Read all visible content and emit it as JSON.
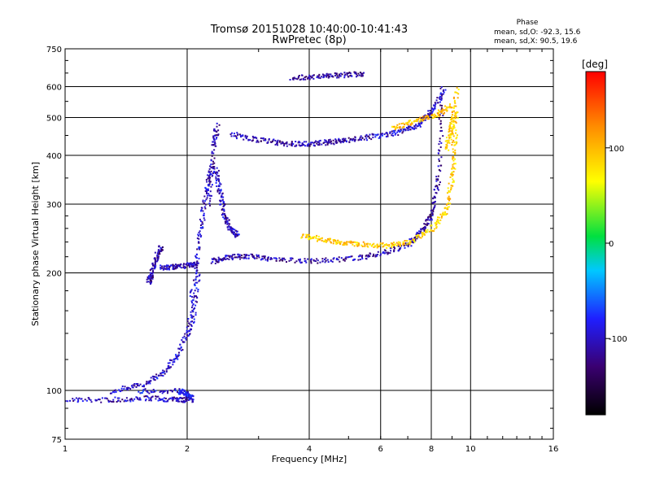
{
  "chart_data": {
    "type": "scatter",
    "title": "Tromsø 20151028 10:40:00-10:41:43",
    "subtitle": "RwPretec (8p)",
    "xlabel": "Frequency [MHz]",
    "ylabel": "Stationary phase Virtual Height [km]",
    "x_scale": "log",
    "y_scale": "log",
    "xlim": [
      1,
      16
    ],
    "ylim": [
      75,
      750
    ],
    "x_ticks": [
      1,
      2,
      4,
      6,
      8,
      10,
      16
    ],
    "y_ticks": [
      75,
      100,
      200,
      300,
      400,
      500,
      600,
      750
    ],
    "grid": true,
    "phase_note": {
      "title": "Phase",
      "line_o": "mean, sd,O: -92.3, 15.6",
      "line_x": "mean, sd,X:  90.5, 19.6"
    },
    "colorbar": {
      "label": "[deg]",
      "range": [
        -180,
        180
      ],
      "ticks": [
        100,
        0,
        -100
      ],
      "tick_labels": [
        "100",
        "0",
        "-100"
      ]
    },
    "traces": [
      {
        "x": [
          1.0,
          1.3,
          1.6,
          1.85,
          2.0
        ],
        "y": [
          95,
          95,
          96,
          95,
          95
        ],
        "phase": -105
      },
      {
        "x": [
          1.3,
          1.55,
          1.75,
          1.9,
          2.05,
          2.12
        ],
        "y": [
          100,
          104,
          112,
          125,
          150,
          200
        ],
        "phase": -100
      },
      {
        "x": [
          1.6,
          1.63,
          1.67,
          1.72
        ],
        "y": [
          190,
          200,
          220,
          235
        ],
        "phase": -110
      },
      {
        "x": [
          1.72,
          1.85,
          2.0,
          2.1
        ],
        "y": [
          207,
          208,
          210,
          212
        ],
        "phase": -108
      },
      {
        "x": [
          2.0,
          2.08,
          2.15,
          2.22,
          2.3
        ],
        "y": [
          140,
          200,
          260,
          330,
          380
        ],
        "phase": -100
      },
      {
        "x": [
          2.25,
          2.32,
          2.36
        ],
        "y": [
          300,
          420,
          480
        ],
        "phase": -110
      },
      {
        "x": [
          2.35,
          2.4,
          2.47,
          2.55,
          2.65
        ],
        "y": [
          370,
          320,
          280,
          260,
          250
        ],
        "phase": -105
      },
      {
        "x": [
          2.3,
          2.5,
          2.8,
          3.2,
          4.0,
          5.0,
          6.0,
          7.0
        ],
        "y": [
          215,
          220,
          222,
          218,
          215,
          218,
          225,
          238
        ],
        "phase": -110
      },
      {
        "x": [
          7.0,
          7.6,
          8.0,
          8.3,
          8.5
        ],
        "y": [
          238,
          258,
          285,
          350,
          560
        ],
        "phase": -115
      },
      {
        "x": [
          2.55,
          3.0,
          3.5,
          4.0,
          4.5,
          5.0,
          5.8
        ],
        "y": [
          455,
          440,
          430,
          430,
          435,
          440,
          450
        ],
        "phase": -112
      },
      {
        "x": [
          5.8,
          6.6,
          7.4,
          8.0,
          8.6
        ],
        "y": [
          450,
          460,
          480,
          520,
          600
        ],
        "phase": -100
      },
      {
        "x": [
          6.4,
          7.2,
          8.2,
          8.9
        ],
        "y": [
          470,
          490,
          510,
          540
        ],
        "phase": 95
      },
      {
        "x": [
          3.6,
          4.2,
          4.8,
          5.5
        ],
        "y": [
          635,
          640,
          645,
          650
        ],
        "phase": -115
      },
      {
        "x": [
          3.8,
          4.3,
          4.8,
          5.4,
          6.2,
          7.0
        ],
        "y": [
          250,
          245,
          240,
          238,
          236,
          240
        ],
        "phase": 92
      },
      {
        "x": [
          7.0,
          8.0,
          8.7,
          9.0,
          9.1,
          9.2
        ],
        "y": [
          240,
          260,
          290,
          360,
          450,
          600
        ],
        "phase": 88
      },
      {
        "x": [
          8.7,
          8.9,
          9.1
        ],
        "y": [
          420,
          470,
          520
        ],
        "phase": 95
      },
      {
        "x": [
          1.5,
          1.9,
          2.0,
          2.05
        ],
        "y": [
          100,
          100,
          98,
          95
        ],
        "phase": -90
      }
    ]
  }
}
